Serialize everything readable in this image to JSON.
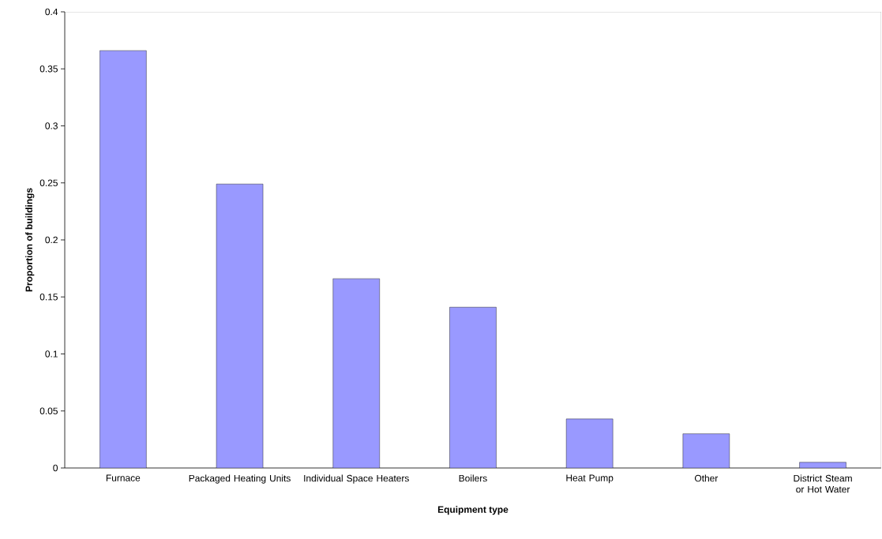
{
  "chart_data": {
    "type": "bar",
    "xlabel": "Equipment type",
    "ylabel": "Proportion of buildings",
    "categories": [
      "Furnace",
      "Packaged Heating Units",
      "Individual Space Heaters",
      "Boilers",
      "Heat Pump",
      "Other",
      "District Steam or Hot Water"
    ],
    "values": [
      0.366,
      0.249,
      0.166,
      0.141,
      0.043,
      0.03,
      0.005
    ],
    "color": "#9999ff",
    "ylim": [
      0,
      0.4
    ],
    "yticks": [
      0,
      0.05,
      0.1,
      0.15,
      0.2,
      0.25,
      0.3,
      0.35,
      0.4
    ],
    "grid": false
  }
}
